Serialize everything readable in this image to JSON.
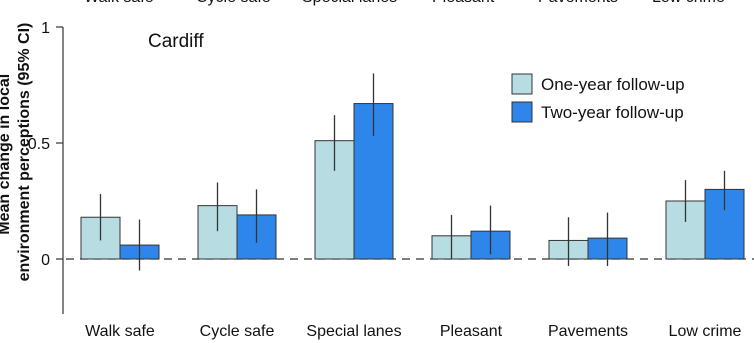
{
  "chart_data": {
    "type": "bar",
    "annotation": "Cardiff",
    "top_clipped_labels": [
      "Walk safe",
      "Cycle safe",
      "Special lanes",
      "Pleasant",
      "Pavements",
      "Low crime"
    ],
    "ylabel": "Mean change in local environment perceptions (95% CI)",
    "categories": [
      "Walk safe",
      "Cycle safe",
      "Special lanes",
      "Pleasant",
      "Pavements",
      "Low crime"
    ],
    "ylim": [
      -0.25,
      1.0
    ],
    "yticks": [
      "1",
      "0.5",
      "0"
    ],
    "ytick_values": [
      1,
      0.5,
      0
    ],
    "grid": false,
    "reference_line": 0,
    "legend_position": "top-right",
    "series": [
      {
        "name": "One-year follow-up",
        "color": "#b7dde3",
        "values": [
          0.18,
          0.23,
          0.51,
          0.1,
          0.08,
          0.25
        ],
        "ci_low": [
          0.08,
          0.12,
          0.38,
          0.0,
          -0.03,
          0.16
        ],
        "ci_high": [
          0.28,
          0.33,
          0.62,
          0.19,
          0.18,
          0.34
        ]
      },
      {
        "name": "Two-year follow-up",
        "color": "#2f86ea",
        "values": [
          0.06,
          0.19,
          0.67,
          0.12,
          0.09,
          0.3
        ],
        "ci_low": [
          -0.05,
          0.07,
          0.53,
          0.02,
          -0.03,
          0.21
        ],
        "ci_high": [
          0.17,
          0.3,
          0.8,
          0.23,
          0.2,
          0.38
        ]
      }
    ]
  }
}
